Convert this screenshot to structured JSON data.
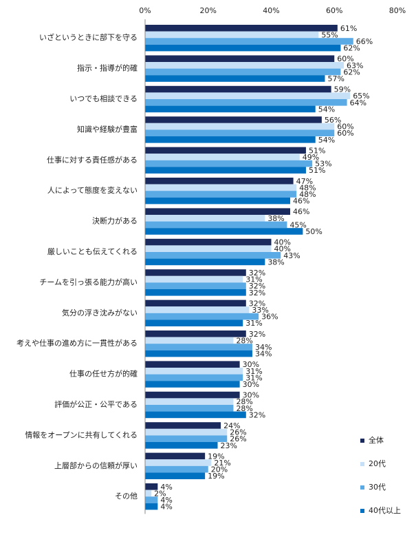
{
  "chart_data": {
    "type": "bar",
    "orientation": "horizontal",
    "categories": [
      "いざというときに部下を守る",
      "指示・指導が的確",
      "いつでも相談できる",
      "知識や経験が豊富",
      "仕事に対する責任感がある",
      "人によって態度を変えない",
      "決断力がある",
      "厳しいことも伝えてくれる",
      "チームを引っ張る能力が高い",
      "気分の浮き沈みがない",
      "考えや仕事の進め方に一貫性がある",
      "仕事の任せ方が的確",
      "評価が公正・公平である",
      "情報をオープンに共有してくれる",
      "上層部からの信頼が厚い",
      "その他"
    ],
    "series": [
      {
        "name": "全体",
        "color": "#1b2a5c",
        "values": [
          61,
          60,
          59,
          56,
          51,
          47,
          46,
          40,
          32,
          32,
          32,
          30,
          30,
          24,
          19,
          4
        ],
        "value_labels": [
          "61%",
          "60%",
          "59%",
          "56%",
          "51%",
          "47%",
          "46%",
          "40%",
          "32%",
          "32%",
          "32%",
          "30%",
          "30%",
          "24%",
          "19%",
          "4%"
        ]
      },
      {
        "name": "20代",
        "color": "#c6e0f7",
        "values": [
          55,
          63,
          65,
          60,
          49,
          48,
          38,
          40,
          31,
          33,
          28,
          31,
          28,
          26,
          21,
          2
        ],
        "value_labels": [
          "55%",
          "63%",
          "65%",
          "60%",
          "49%",
          "48%",
          "38%",
          "40%",
          "31%",
          "33%",
          "28%",
          "31%",
          "28%",
          "26%",
          "21%",
          "2%"
        ]
      },
      {
        "name": "30代",
        "color": "#5aaae6",
        "values": [
          66,
          62,
          64,
          60,
          53,
          48,
          45,
          43,
          32,
          36,
          34,
          31,
          28,
          26,
          20,
          4
        ],
        "value_labels": [
          "66%",
          "62%",
          "64%",
          "60%",
          "53%",
          "48%",
          "45%",
          "43%",
          "32%",
          "36%",
          "34%",
          "31%",
          "28%",
          "26%",
          "20%",
          "4%"
        ]
      },
      {
        "name": "40代以上",
        "color": "#0070c0",
        "values": [
          62,
          57,
          54,
          54,
          51,
          46,
          50,
          38,
          32,
          31,
          34,
          30,
          32,
          23,
          19,
          4
        ],
        "value_labels": [
          "62%",
          "57%",
          "54%",
          "54%",
          "51%",
          "46%",
          "50%",
          "38%",
          "32%",
          "31%",
          "34%",
          "30%",
          "32%",
          "23%",
          "19%",
          "4%"
        ]
      }
    ],
    "xlim": [
      0,
      80
    ],
    "xticks": [
      {
        "value": 0,
        "label": "0%"
      },
      {
        "value": 20,
        "label": "20%"
      },
      {
        "value": 40,
        "label": "40%"
      },
      {
        "value": 60,
        "label": "60%"
      },
      {
        "value": 80,
        "label": "80%"
      }
    ],
    "grid": false,
    "legend": "bottom-right"
  }
}
